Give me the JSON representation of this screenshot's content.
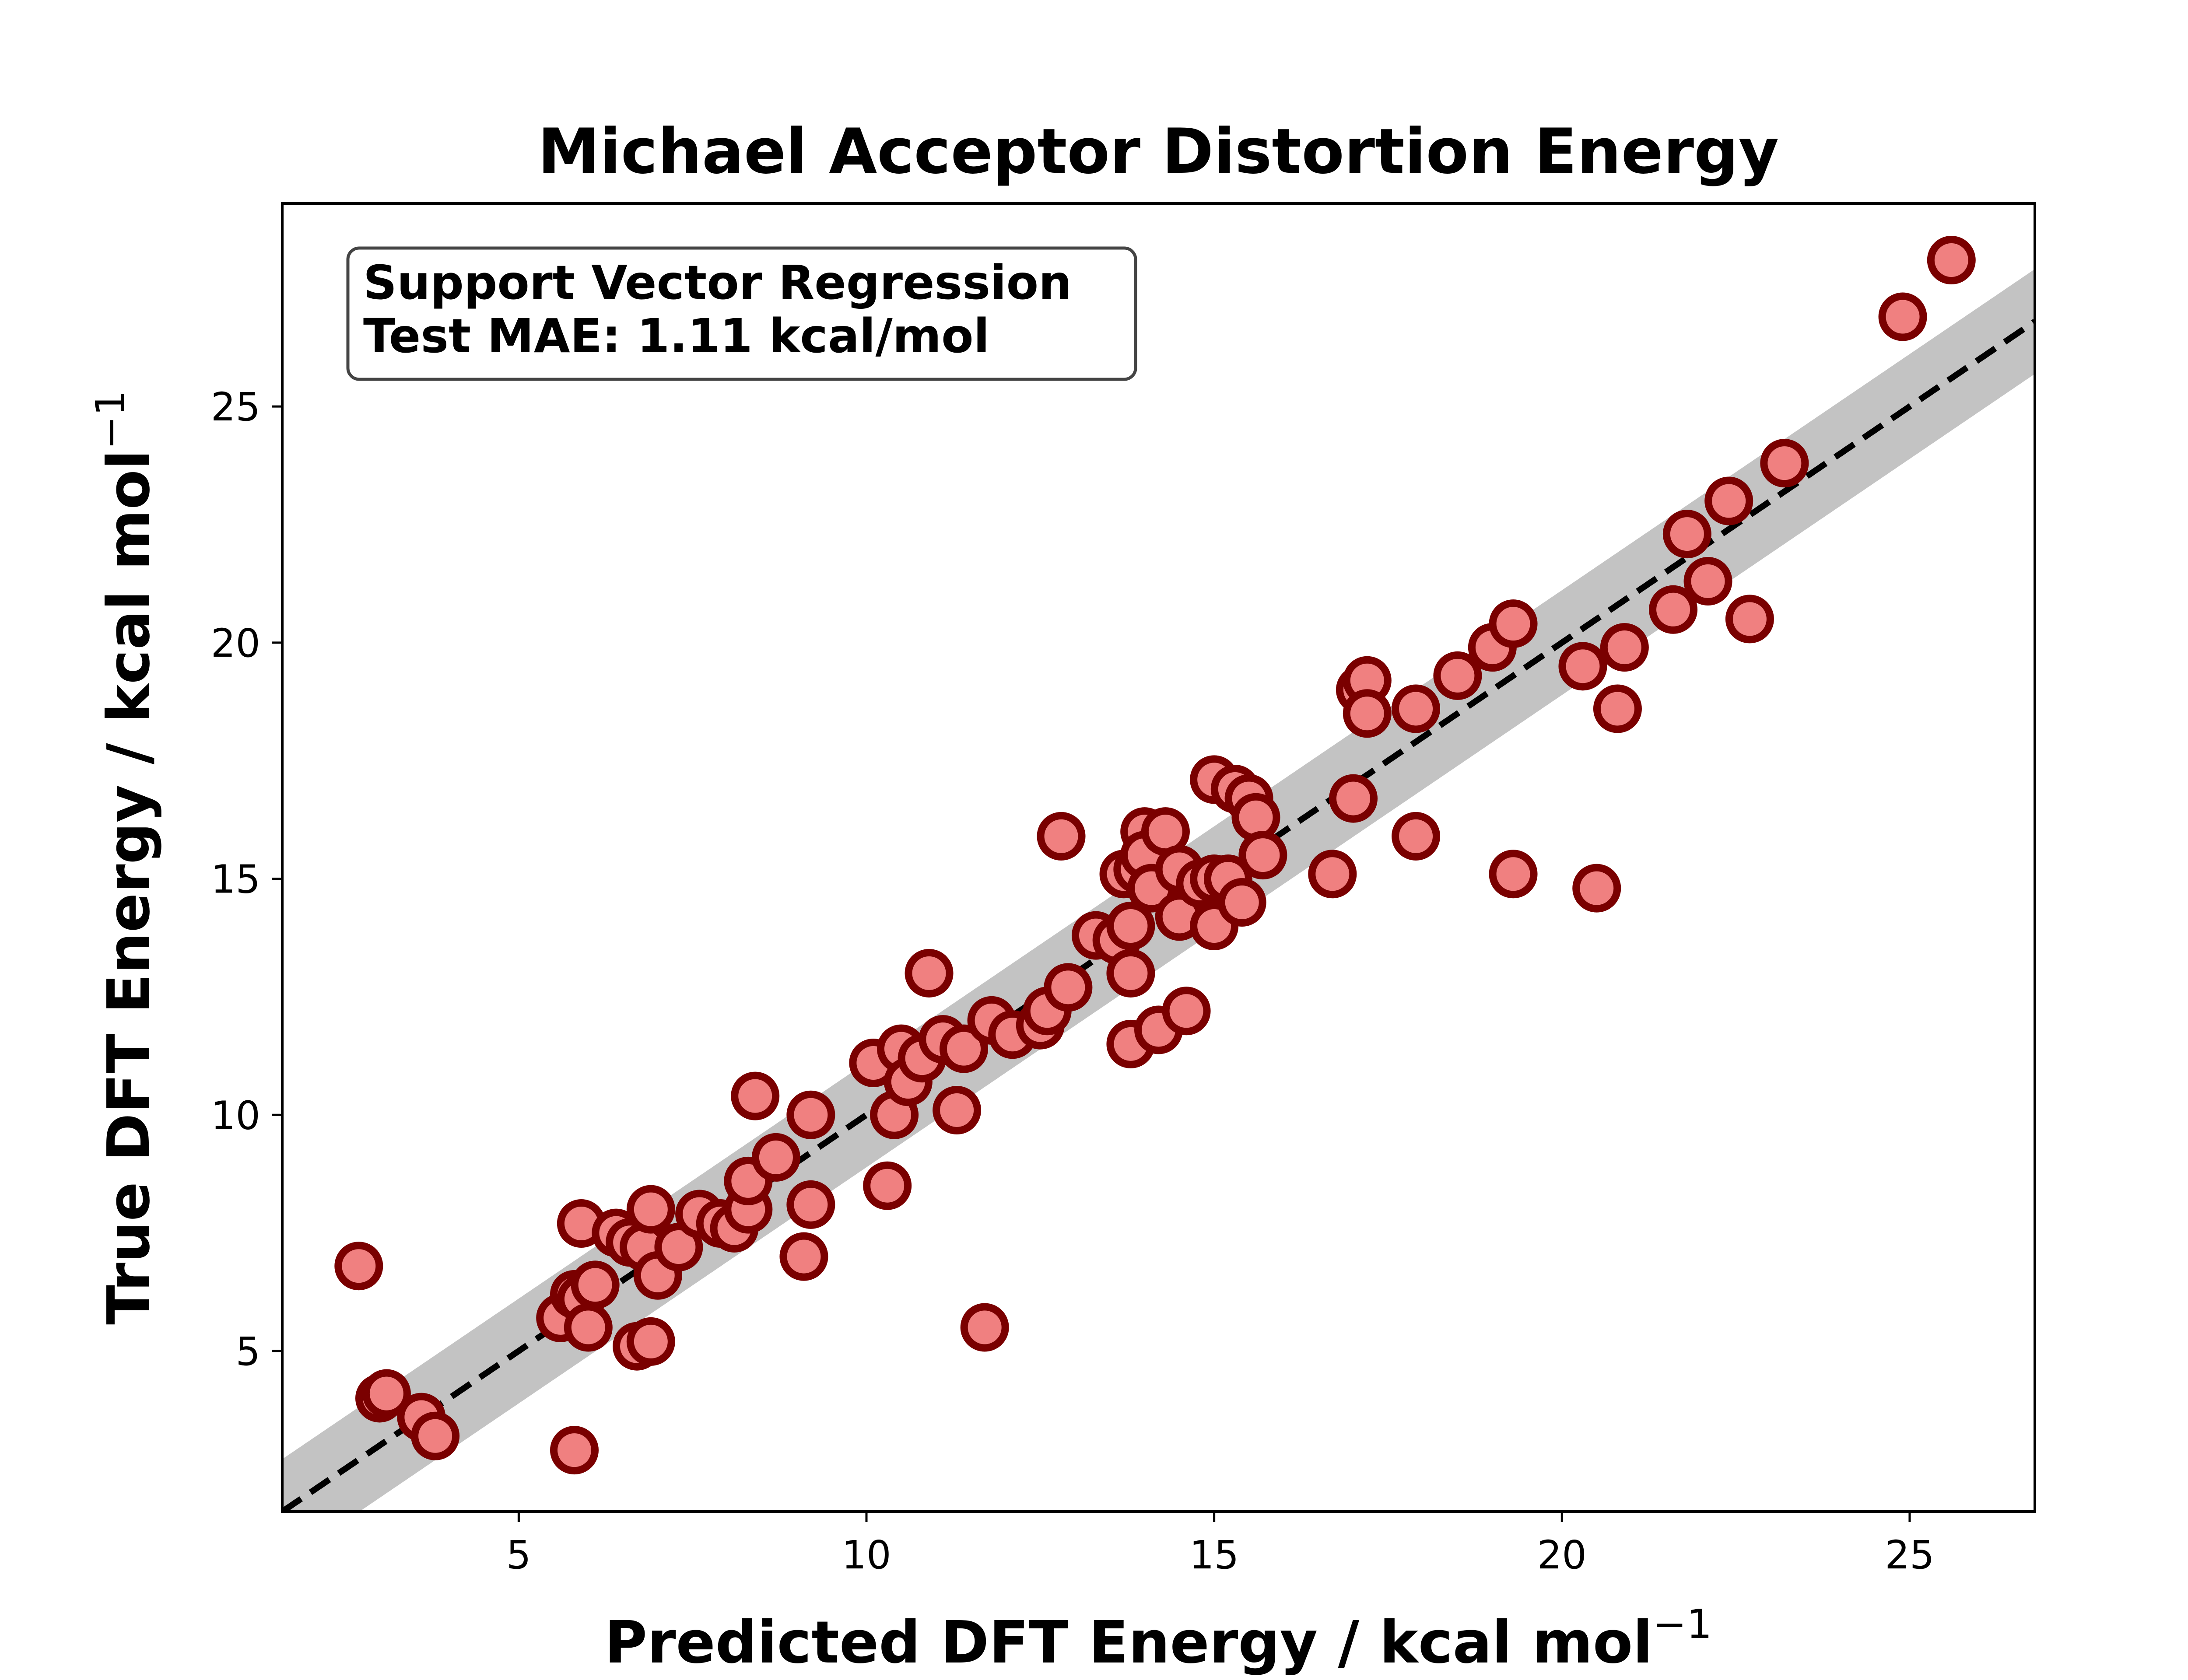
{
  "chart_data": {
    "type": "scatter",
    "title": "Michael Acceptor Distortion Energy",
    "xlabel": "Predicted DFT Energy / kcal mol",
    "ylabel": "True DFT Energy / kcal mol",
    "unit_exponent": "−1",
    "annotation": {
      "line1": "Support Vector Regression",
      "line2": "Test MAE: 1.11 kcal/mol"
    },
    "xlim": [
      1.6,
      26.8
    ],
    "ylim": [
      1.6,
      29.3
    ],
    "xticks": [
      "5",
      "10",
      "15",
      "20",
      "25"
    ],
    "yticks": [
      "5",
      "10",
      "15",
      "20",
      "25"
    ],
    "reference_line": {
      "style": "dashed",
      "color": "#000000",
      "from": [
        1.6,
        1.6
      ],
      "to": [
        26.8,
        26.8
      ]
    },
    "error_band": {
      "halfwidth": 1.11,
      "color": "#bdbdbd"
    },
    "marker": {
      "fill": "#f08080",
      "edge": "#7a0000"
    },
    "points": [
      {
        "x": 2.7,
        "y": 6.8
      },
      {
        "x": 3.0,
        "y": 4.0
      },
      {
        "x": 3.1,
        "y": 4.1
      },
      {
        "x": 3.6,
        "y": 3.6
      },
      {
        "x": 3.8,
        "y": 3.2
      },
      {
        "x": 5.6,
        "y": 5.7
      },
      {
        "x": 5.8,
        "y": 6.2
      },
      {
        "x": 5.9,
        "y": 6.1
      },
      {
        "x": 5.8,
        "y": 2.9
      },
      {
        "x": 5.9,
        "y": 7.7
      },
      {
        "x": 6.0,
        "y": 5.5
      },
      {
        "x": 6.1,
        "y": 6.4
      },
      {
        "x": 6.4,
        "y": 7.5
      },
      {
        "x": 6.6,
        "y": 7.3
      },
      {
        "x": 6.7,
        "y": 5.1
      },
      {
        "x": 6.9,
        "y": 5.2
      },
      {
        "x": 6.8,
        "y": 7.2
      },
      {
        "x": 6.9,
        "y": 8.0
      },
      {
        "x": 7.0,
        "y": 6.6
      },
      {
        "x": 7.3,
        "y": 7.2
      },
      {
        "x": 7.6,
        "y": 7.9
      },
      {
        "x": 7.9,
        "y": 7.7
      },
      {
        "x": 8.1,
        "y": 7.6
      },
      {
        "x": 8.3,
        "y": 8.0
      },
      {
        "x": 8.3,
        "y": 8.6
      },
      {
        "x": 8.4,
        "y": 10.4
      },
      {
        "x": 8.7,
        "y": 9.1
      },
      {
        "x": 9.1,
        "y": 7.0
      },
      {
        "x": 9.2,
        "y": 8.1
      },
      {
        "x": 9.2,
        "y": 10.0
      },
      {
        "x": 10.1,
        "y": 11.1
      },
      {
        "x": 10.3,
        "y": 8.5
      },
      {
        "x": 10.4,
        "y": 10.0
      },
      {
        "x": 10.5,
        "y": 11.4
      },
      {
        "x": 10.6,
        "y": 10.7
      },
      {
        "x": 10.8,
        "y": 11.2
      },
      {
        "x": 10.9,
        "y": 13.0
      },
      {
        "x": 11.1,
        "y": 11.6
      },
      {
        "x": 11.3,
        "y": 10.1
      },
      {
        "x": 11.4,
        "y": 11.4
      },
      {
        "x": 11.7,
        "y": 5.5
      },
      {
        "x": 11.8,
        "y": 12.0
      },
      {
        "x": 12.1,
        "y": 11.7
      },
      {
        "x": 12.5,
        "y": 11.9
      },
      {
        "x": 12.6,
        "y": 12.2
      },
      {
        "x": 12.8,
        "y": 15.9
      },
      {
        "x": 12.9,
        "y": 12.7
      },
      {
        "x": 13.3,
        "y": 13.8
      },
      {
        "x": 13.6,
        "y": 13.7
      },
      {
        "x": 13.7,
        "y": 15.1
      },
      {
        "x": 13.8,
        "y": 11.5
      },
      {
        "x": 13.8,
        "y": 13.0
      },
      {
        "x": 13.8,
        "y": 14.0
      },
      {
        "x": 13.9,
        "y": 15.2
      },
      {
        "x": 14.0,
        "y": 16.0
      },
      {
        "x": 14.0,
        "y": 15.5
      },
      {
        "x": 14.1,
        "y": 14.8
      },
      {
        "x": 14.2,
        "y": 11.8
      },
      {
        "x": 14.3,
        "y": 16.0
      },
      {
        "x": 14.5,
        "y": 15.2
      },
      {
        "x": 14.5,
        "y": 14.2
      },
      {
        "x": 14.6,
        "y": 12.2
      },
      {
        "x": 14.8,
        "y": 14.9
      },
      {
        "x": 15.0,
        "y": 14.0
      },
      {
        "x": 15.0,
        "y": 15.0
      },
      {
        "x": 15.0,
        "y": 17.1
      },
      {
        "x": 15.2,
        "y": 15.0
      },
      {
        "x": 15.3,
        "y": 16.9
      },
      {
        "x": 15.4,
        "y": 14.5
      },
      {
        "x": 15.5,
        "y": 16.7
      },
      {
        "x": 15.6,
        "y": 16.3
      },
      {
        "x": 15.7,
        "y": 15.5
      },
      {
        "x": 16.7,
        "y": 15.1
      },
      {
        "x": 17.0,
        "y": 16.7
      },
      {
        "x": 17.1,
        "y": 19.0
      },
      {
        "x": 17.2,
        "y": 19.2
      },
      {
        "x": 17.2,
        "y": 18.5
      },
      {
        "x": 17.9,
        "y": 15.9
      },
      {
        "x": 17.9,
        "y": 18.6
      },
      {
        "x": 18.5,
        "y": 19.3
      },
      {
        "x": 19.0,
        "y": 19.9
      },
      {
        "x": 19.3,
        "y": 20.4
      },
      {
        "x": 19.3,
        "y": 15.1
      },
      {
        "x": 20.3,
        "y": 19.5
      },
      {
        "x": 20.5,
        "y": 14.8
      },
      {
        "x": 20.8,
        "y": 18.6
      },
      {
        "x": 20.9,
        "y": 19.9
      },
      {
        "x": 21.6,
        "y": 20.7
      },
      {
        "x": 21.8,
        "y": 22.3
      },
      {
        "x": 22.1,
        "y": 21.3
      },
      {
        "x": 22.4,
        "y": 23.0
      },
      {
        "x": 22.7,
        "y": 20.5
      },
      {
        "x": 23.2,
        "y": 23.8
      },
      {
        "x": 24.9,
        "y": 26.9
      },
      {
        "x": 25.6,
        "y": 28.1
      }
    ]
  }
}
